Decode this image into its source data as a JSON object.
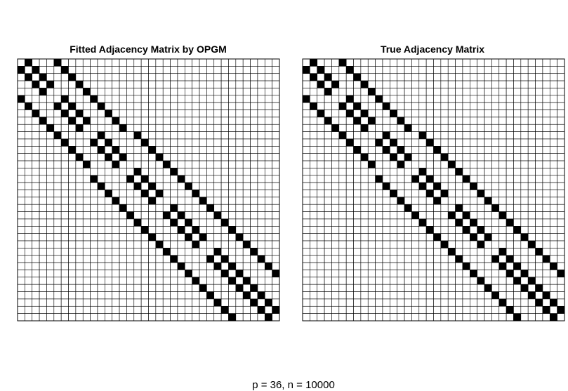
{
  "caption": "p = 36, n = 10000",
  "chart_data": [
    {
      "type": "heatmap",
      "title": "Fitted Adjacency Matrix by OPGM",
      "n": 36,
      "grid": true,
      "cell_on_color": "#000000",
      "cell_off_color": "#ffffff",
      "edges": [
        [
          1,
          2
        ],
        [
          1,
          6
        ],
        [
          2,
          3
        ],
        [
          2,
          7
        ],
        [
          3,
          4
        ],
        [
          3,
          8
        ],
        [
          4,
          5
        ],
        [
          4,
          9
        ],
        [
          5,
          10
        ],
        [
          6,
          7
        ],
        [
          6,
          11
        ],
        [
          7,
          8
        ],
        [
          7,
          12
        ],
        [
          8,
          9
        ],
        [
          8,
          13
        ],
        [
          9,
          10
        ],
        [
          9,
          14
        ],
        [
          10,
          15
        ],
        [
          11,
          12
        ],
        [
          11,
          17
        ],
        [
          12,
          13
        ],
        [
          12,
          18
        ],
        [
          13,
          14
        ],
        [
          13,
          19
        ],
        [
          14,
          15
        ],
        [
          14,
          20
        ],
        [
          15,
          21
        ],
        [
          16,
          17
        ],
        [
          16,
          22
        ],
        [
          17,
          18
        ],
        [
          17,
          23
        ],
        [
          18,
          19
        ],
        [
          18,
          24
        ],
        [
          19,
          20
        ],
        [
          19,
          25
        ],
        [
          20,
          26
        ],
        [
          21,
          22
        ],
        [
          21,
          27
        ],
        [
          22,
          23
        ],
        [
          22,
          28
        ],
        [
          23,
          24
        ],
        [
          23,
          29
        ],
        [
          24,
          25
        ],
        [
          24,
          30
        ],
        [
          25,
          26
        ],
        [
          25,
          31
        ],
        [
          26,
          32
        ],
        [
          27,
          28
        ],
        [
          27,
          33
        ],
        [
          28,
          29
        ],
        [
          28,
          34
        ],
        [
          29,
          30
        ],
        [
          29,
          35
        ],
        [
          30,
          31
        ],
        [
          30,
          36
        ],
        [
          31,
          32
        ],
        [
          32,
          33
        ],
        [
          33,
          34
        ],
        [
          34,
          35
        ],
        [
          35,
          36
        ]
      ]
    },
    {
      "type": "heatmap",
      "title": "True Adjacency Matrix",
      "n": 36,
      "grid": true,
      "cell_on_color": "#000000",
      "cell_off_color": "#ffffff",
      "edges": [
        [
          1,
          2
        ],
        [
          1,
          6
        ],
        [
          2,
          3
        ],
        [
          2,
          7
        ],
        [
          3,
          4
        ],
        [
          3,
          8
        ],
        [
          4,
          5
        ],
        [
          4,
          9
        ],
        [
          5,
          10
        ],
        [
          6,
          7
        ],
        [
          6,
          11
        ],
        [
          7,
          8
        ],
        [
          7,
          12
        ],
        [
          8,
          9
        ],
        [
          8,
          13
        ],
        [
          9,
          10
        ],
        [
          9,
          14
        ],
        [
          10,
          15
        ],
        [
          11,
          12
        ],
        [
          11,
          17
        ],
        [
          12,
          13
        ],
        [
          12,
          18
        ],
        [
          13,
          14
        ],
        [
          13,
          19
        ],
        [
          14,
          15
        ],
        [
          14,
          20
        ],
        [
          15,
          21
        ],
        [
          16,
          17
        ],
        [
          16,
          22
        ],
        [
          17,
          18
        ],
        [
          17,
          23
        ],
        [
          18,
          19
        ],
        [
          18,
          24
        ],
        [
          19,
          20
        ],
        [
          19,
          25
        ],
        [
          20,
          26
        ],
        [
          21,
          22
        ],
        [
          21,
          27
        ],
        [
          22,
          23
        ],
        [
          22,
          28
        ],
        [
          23,
          24
        ],
        [
          23,
          29
        ],
        [
          24,
          25
        ],
        [
          24,
          30
        ],
        [
          25,
          26
        ],
        [
          25,
          31
        ],
        [
          26,
          32
        ],
        [
          27,
          28
        ],
        [
          27,
          33
        ],
        [
          28,
          29
        ],
        [
          28,
          34
        ],
        [
          29,
          30
        ],
        [
          29,
          35
        ],
        [
          30,
          31
        ],
        [
          30,
          36
        ],
        [
          31,
          32
        ],
        [
          32,
          33
        ],
        [
          33,
          34
        ],
        [
          34,
          35
        ],
        [
          35,
          36
        ]
      ]
    }
  ]
}
